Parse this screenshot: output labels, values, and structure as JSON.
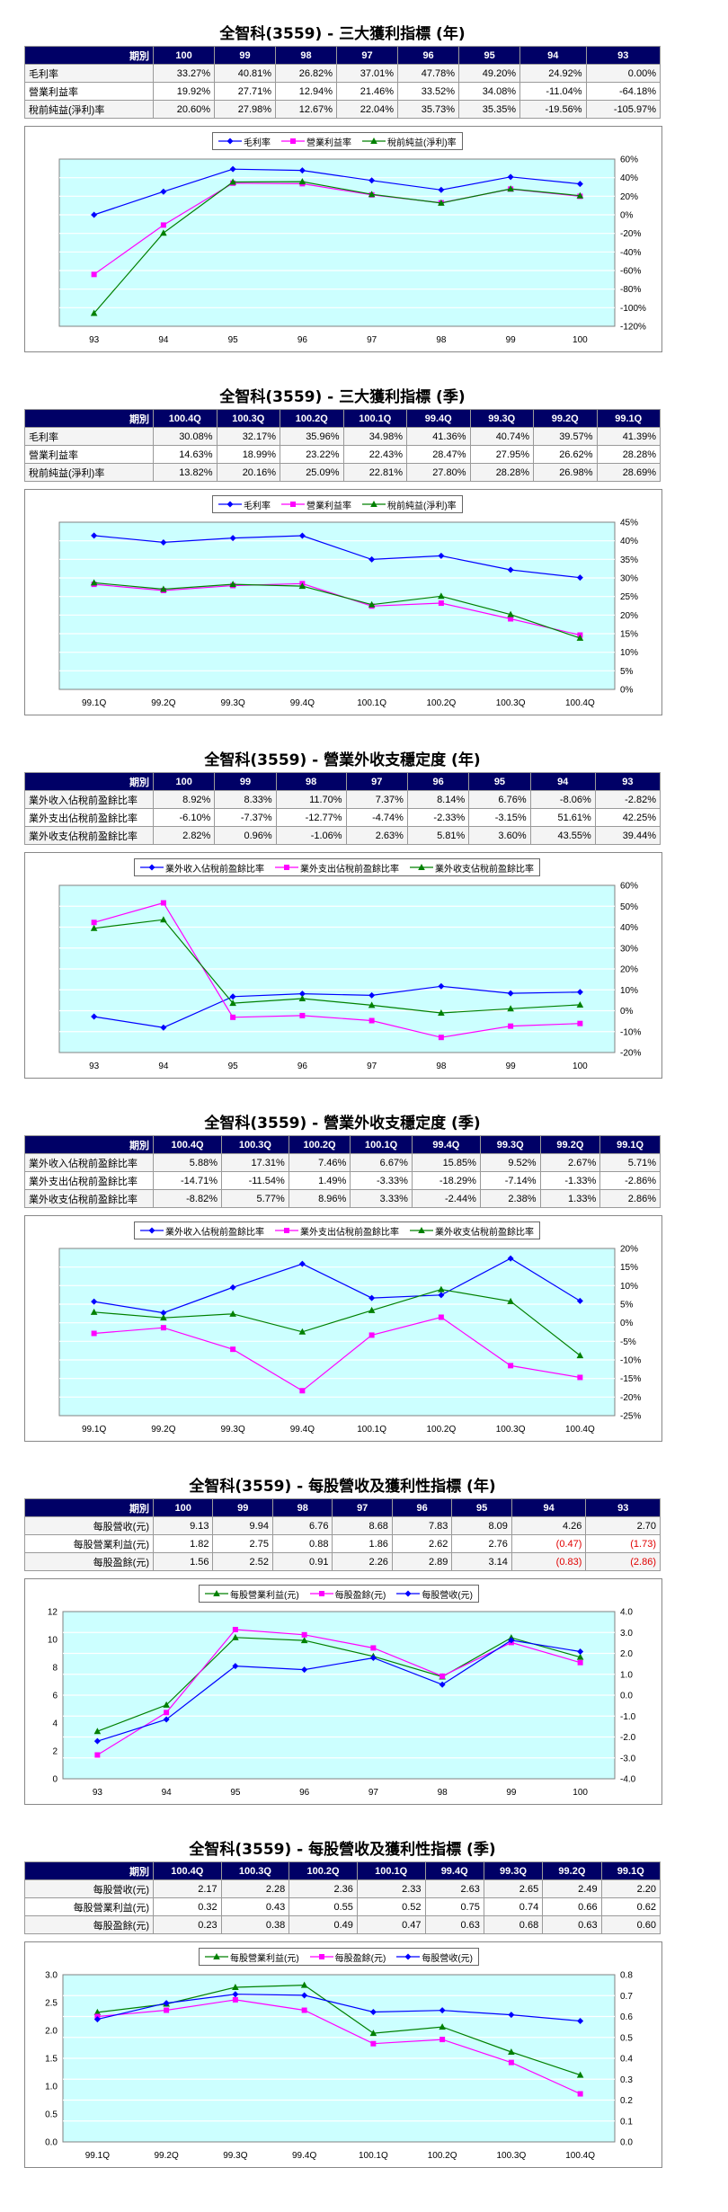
{
  "sections": [
    {
      "title": "全智科(3559) - 三大獲利指標 (年)",
      "columns": [
        "期別",
        "100",
        "99",
        "98",
        "97",
        "96",
        "95",
        "94",
        "93"
      ],
      "rows": [
        {
          "label": "毛利率",
          "cells": [
            "33.27%",
            "40.81%",
            "26.82%",
            "37.01%",
            "47.78%",
            "49.20%",
            "24.92%",
            "0.00%"
          ]
        },
        {
          "label": "營業利益率",
          "cells": [
            "19.92%",
            "27.71%",
            "12.94%",
            "21.46%",
            "33.52%",
            "34.08%",
            "-11.04%",
            "-64.18%"
          ]
        },
        {
          "label": "稅前純益(淨利)率",
          "cells": [
            "20.60%",
            "27.98%",
            "12.67%",
            "22.04%",
            "35.73%",
            "35.35%",
            "-19.56%",
            "-105.97%"
          ]
        }
      ]
    },
    {
      "title": "全智科(3559) - 三大獲利指標 (季)",
      "columns": [
        "期別",
        "100.4Q",
        "100.3Q",
        "100.2Q",
        "100.1Q",
        "99.4Q",
        "99.3Q",
        "99.2Q",
        "99.1Q"
      ],
      "rows": [
        {
          "label": "毛利率",
          "cells": [
            "30.08%",
            "32.17%",
            "35.96%",
            "34.98%",
            "41.36%",
            "40.74%",
            "39.57%",
            "41.39%"
          ]
        },
        {
          "label": "營業利益率",
          "cells": [
            "14.63%",
            "18.99%",
            "23.22%",
            "22.43%",
            "28.47%",
            "27.95%",
            "26.62%",
            "28.28%"
          ]
        },
        {
          "label": "稅前純益(淨利)率",
          "cells": [
            "13.82%",
            "20.16%",
            "25.09%",
            "22.81%",
            "27.80%",
            "28.28%",
            "26.98%",
            "28.69%"
          ]
        }
      ]
    },
    {
      "title": "全智科(3559) - 營業外收支穩定度 (年)",
      "columns": [
        "期別",
        "100",
        "99",
        "98",
        "97",
        "96",
        "95",
        "94",
        "93"
      ],
      "rows": [
        {
          "label": "業外收入佔稅前盈餘比率",
          "cells": [
            "8.92%",
            "8.33%",
            "11.70%",
            "7.37%",
            "8.14%",
            "6.76%",
            "-8.06%",
            "-2.82%"
          ]
        },
        {
          "label": "業外支出佔稅前盈餘比率",
          "cells": [
            "-6.10%",
            "-7.37%",
            "-12.77%",
            "-4.74%",
            "-2.33%",
            "-3.15%",
            "51.61%",
            "42.25%"
          ]
        },
        {
          "label": "業外收支佔稅前盈餘比率",
          "cells": [
            "2.82%",
            "0.96%",
            "-1.06%",
            "2.63%",
            "5.81%",
            "3.60%",
            "43.55%",
            "39.44%"
          ]
        }
      ]
    },
    {
      "title": "全智科(3559) - 營業外收支穩定度 (季)",
      "columns": [
        "期別",
        "100.4Q",
        "100.3Q",
        "100.2Q",
        "100.1Q",
        "99.4Q",
        "99.3Q",
        "99.2Q",
        "99.1Q"
      ],
      "rows": [
        {
          "label": "業外收入佔稅前盈餘比率",
          "cells": [
            "5.88%",
            "17.31%",
            "7.46%",
            "6.67%",
            "15.85%",
            "9.52%",
            "2.67%",
            "5.71%"
          ]
        },
        {
          "label": "業外支出佔稅前盈餘比率",
          "cells": [
            "-14.71%",
            "-11.54%",
            "1.49%",
            "-3.33%",
            "-18.29%",
            "-7.14%",
            "-1.33%",
            "-2.86%"
          ]
        },
        {
          "label": "業外收支佔稅前盈餘比率",
          "cells": [
            "-8.82%",
            "5.77%",
            "8.96%",
            "3.33%",
            "-2.44%",
            "2.38%",
            "1.33%",
            "2.86%"
          ]
        }
      ]
    },
    {
      "title": "全智科(3559) - 每股營收及獲利性指標 (年)",
      "columns": [
        "期別",
        "100",
        "99",
        "98",
        "97",
        "96",
        "95",
        "94",
        "93"
      ],
      "rows": [
        {
          "label": "每股營收(元)",
          "cells": [
            "9.13",
            "9.94",
            "6.76",
            "8.68",
            "7.83",
            "8.09",
            "4.26",
            "2.70"
          ]
        },
        {
          "label": "每股營業利益(元)",
          "cells": [
            "1.82",
            "2.75",
            "0.88",
            "1.86",
            "2.62",
            "2.76",
            "(0.47)",
            "(1.73)"
          ]
        },
        {
          "label": "每股盈餘(元)",
          "cells": [
            "1.56",
            "2.52",
            "0.91",
            "2.26",
            "2.89",
            "3.14",
            "(0.83)",
            "(2.86)"
          ]
        }
      ]
    },
    {
      "title": "全智科(3559) - 每股營收及獲利性指標 (季)",
      "columns": [
        "期別",
        "100.4Q",
        "100.3Q",
        "100.2Q",
        "100.1Q",
        "99.4Q",
        "99.3Q",
        "99.2Q",
        "99.1Q"
      ],
      "rows": [
        {
          "label": "每股營收(元)",
          "cells": [
            "2.17",
            "2.28",
            "2.36",
            "2.33",
            "2.63",
            "2.65",
            "2.49",
            "2.20"
          ]
        },
        {
          "label": "每股營業利益(元)",
          "cells": [
            "0.32",
            "0.43",
            "0.55",
            "0.52",
            "0.75",
            "0.74",
            "0.66",
            "0.62"
          ]
        },
        {
          "label": "每股盈餘(元)",
          "cells": [
            "0.23",
            "0.38",
            "0.49",
            "0.47",
            "0.63",
            "0.68",
            "0.63",
            "0.60"
          ]
        }
      ]
    }
  ],
  "chart_data": [
    {
      "type": "line",
      "x": [
        "93",
        "94",
        "95",
        "96",
        "97",
        "98",
        "99",
        "100"
      ],
      "y_right": {
        "min": -120,
        "max": 60,
        "step": 20,
        "suffix": "%"
      },
      "grid": true,
      "legend_position": "top",
      "series": [
        {
          "name": "毛利率",
          "axis": "right",
          "color": "#0000ff",
          "marker": "diamond",
          "values": [
            0.0,
            24.92,
            49.2,
            47.78,
            37.01,
            26.82,
            40.81,
            33.27
          ]
        },
        {
          "name": "營業利益率",
          "axis": "right",
          "color": "#ff00ff",
          "marker": "square",
          "values": [
            -64.18,
            -11.04,
            34.08,
            33.52,
            21.46,
            12.94,
            27.71,
            19.92
          ]
        },
        {
          "name": "稅前純益(淨利)率",
          "axis": "right",
          "color": "#008000",
          "marker": "triangle",
          "values": [
            -105.97,
            -19.56,
            35.35,
            35.73,
            22.04,
            12.67,
            27.98,
            20.6
          ]
        }
      ]
    },
    {
      "type": "line",
      "x": [
        "99.1Q",
        "99.2Q",
        "99.3Q",
        "99.4Q",
        "100.1Q",
        "100.2Q",
        "100.3Q",
        "100.4Q"
      ],
      "y_right": {
        "min": 0,
        "max": 45,
        "step": 5,
        "suffix": "%"
      },
      "grid": true,
      "legend_position": "top",
      "series": [
        {
          "name": "毛利率",
          "axis": "right",
          "color": "#0000ff",
          "marker": "diamond",
          "values": [
            41.39,
            39.57,
            40.74,
            41.36,
            34.98,
            35.96,
            32.17,
            30.08
          ]
        },
        {
          "name": "營業利益率",
          "axis": "right",
          "color": "#ff00ff",
          "marker": "square",
          "values": [
            28.28,
            26.62,
            27.95,
            28.47,
            22.43,
            23.22,
            18.99,
            14.63
          ]
        },
        {
          "name": "稅前純益(淨利)率",
          "axis": "right",
          "color": "#008000",
          "marker": "triangle",
          "values": [
            28.69,
            26.98,
            28.28,
            27.8,
            22.81,
            25.09,
            20.16,
            13.82
          ]
        }
      ]
    },
    {
      "type": "line",
      "x": [
        "93",
        "94",
        "95",
        "96",
        "97",
        "98",
        "99",
        "100"
      ],
      "y_right": {
        "min": -20,
        "max": 60,
        "step": 10,
        "suffix": "%"
      },
      "grid": true,
      "legend_position": "top",
      "series": [
        {
          "name": "業外收入佔稅前盈餘比率",
          "axis": "right",
          "color": "#0000ff",
          "marker": "diamond",
          "values": [
            -2.82,
            -8.06,
            6.76,
            8.14,
            7.37,
            11.7,
            8.33,
            8.92
          ]
        },
        {
          "name": "業外支出佔稅前盈餘比率",
          "axis": "right",
          "color": "#ff00ff",
          "marker": "square",
          "values": [
            42.25,
            51.61,
            -3.15,
            -2.33,
            -4.74,
            -12.77,
            -7.37,
            -6.1
          ]
        },
        {
          "name": "業外收支佔稅前盈餘比率",
          "axis": "right",
          "color": "#008000",
          "marker": "triangle",
          "values": [
            39.44,
            43.55,
            3.6,
            5.81,
            2.63,
            -1.06,
            0.96,
            2.82
          ]
        }
      ]
    },
    {
      "type": "line",
      "x": [
        "99.1Q",
        "99.2Q",
        "99.3Q",
        "99.4Q",
        "100.1Q",
        "100.2Q",
        "100.3Q",
        "100.4Q"
      ],
      "y_right": {
        "min": -25,
        "max": 20,
        "step": 5,
        "suffix": "%"
      },
      "grid": true,
      "legend_position": "top",
      "series": [
        {
          "name": "業外收入佔稅前盈餘比率",
          "axis": "right",
          "color": "#0000ff",
          "marker": "diamond",
          "values": [
            5.71,
            2.67,
            9.52,
            15.85,
            6.67,
            7.46,
            17.31,
            5.88
          ]
        },
        {
          "name": "業外支出佔稅前盈餘比率",
          "axis": "right",
          "color": "#ff00ff",
          "marker": "square",
          "values": [
            -2.86,
            -1.33,
            -7.14,
            -18.29,
            -3.33,
            1.49,
            -11.54,
            -14.71
          ]
        },
        {
          "name": "業外收支佔稅前盈餘比率",
          "axis": "right",
          "color": "#008000",
          "marker": "triangle",
          "values": [
            2.86,
            1.33,
            2.38,
            -2.44,
            3.33,
            8.96,
            5.77,
            -8.82
          ]
        }
      ]
    },
    {
      "type": "line",
      "x": [
        "93",
        "94",
        "95",
        "96",
        "97",
        "98",
        "99",
        "100"
      ],
      "y_left": {
        "min": 0,
        "max": 12,
        "step": 2,
        "suffix": ""
      },
      "y_right": {
        "min": -4,
        "max": 4,
        "step": 1,
        "suffix": "",
        "decimals": 1
      },
      "grid": true,
      "legend_position": "top",
      "series": [
        {
          "name": "每股營業利益(元)",
          "axis": "right",
          "color": "#008000",
          "marker": "triangle",
          "values": [
            -1.73,
            -0.47,
            2.76,
            2.62,
            1.86,
            0.88,
            2.75,
            1.82
          ]
        },
        {
          "name": "每股盈餘(元)",
          "axis": "right",
          "color": "#ff00ff",
          "marker": "square",
          "values": [
            -2.86,
            -0.83,
            3.14,
            2.89,
            2.26,
            0.91,
            2.52,
            1.56
          ]
        },
        {
          "name": "每股營收(元)",
          "axis": "left",
          "color": "#0000ff",
          "marker": "diamond",
          "values": [
            2.7,
            4.26,
            8.09,
            7.83,
            8.68,
            6.76,
            9.94,
            9.13
          ]
        }
      ]
    },
    {
      "type": "line",
      "x": [
        "99.1Q",
        "99.2Q",
        "99.3Q",
        "99.4Q",
        "100.1Q",
        "100.2Q",
        "100.3Q",
        "100.4Q"
      ],
      "y_left": {
        "min": 0,
        "max": 3,
        "step": 0.5,
        "suffix": "",
        "decimals": 1
      },
      "y_right": {
        "min": 0,
        "max": 0.8,
        "step": 0.1,
        "suffix": "",
        "decimals": 1
      },
      "grid": true,
      "legend_position": "top",
      "series": [
        {
          "name": "每股營業利益(元)",
          "axis": "right",
          "color": "#008000",
          "marker": "triangle",
          "values": [
            0.62,
            0.66,
            0.74,
            0.75,
            0.52,
            0.55,
            0.43,
            0.32
          ]
        },
        {
          "name": "每股盈餘(元)",
          "axis": "right",
          "color": "#ff00ff",
          "marker": "square",
          "values": [
            0.6,
            0.63,
            0.68,
            0.63,
            0.47,
            0.49,
            0.38,
            0.23
          ]
        },
        {
          "name": "每股營收(元)",
          "axis": "left",
          "color": "#0000ff",
          "marker": "diamond",
          "values": [
            2.2,
            2.49,
            2.65,
            2.63,
            2.33,
            2.36,
            2.28,
            2.17
          ]
        }
      ]
    }
  ]
}
